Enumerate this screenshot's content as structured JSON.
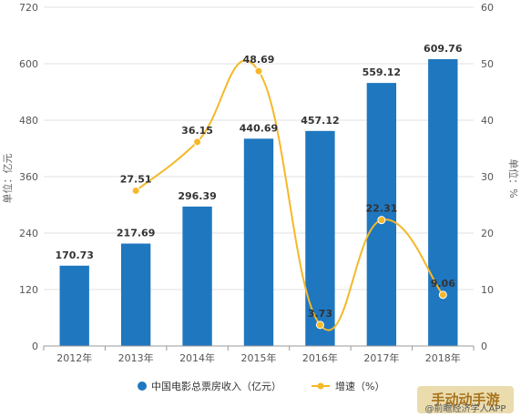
{
  "chart_data": {
    "type": "bar",
    "categories": [
      "2012年",
      "2013年",
      "2014年",
      "2015年",
      "2016年",
      "2017年",
      "2018年"
    ],
    "series": [
      {
        "name": "中国电影总票房收入（亿元）",
        "type": "bar",
        "axis": "left",
        "values": [
          170.73,
          217.69,
          296.39,
          440.69,
          457.12,
          559.12,
          609.76
        ],
        "labels": [
          "170.73",
          "217.69",
          "296.39",
          "440.69",
          "457.12",
          "559.12",
          "609.76"
        ],
        "color": "#1f77c0"
      },
      {
        "name": "增速（%）",
        "type": "line",
        "axis": "right",
        "values": [
          null,
          27.51,
          36.15,
          48.69,
          3.73,
          22.31,
          9.06
        ],
        "labels": [
          "",
          "27.51",
          "36.15",
          "48.69",
          "3.73",
          "22.31",
          "9.06"
        ],
        "color": "#f5b829"
      }
    ],
    "ylabel": "单位：亿元",
    "y2label": "单位：%",
    "ylim": [
      0,
      720
    ],
    "y2lim": [
      0,
      60
    ],
    "yticks": [
      "0",
      "120",
      "240",
      "360",
      "480",
      "600",
      "720"
    ],
    "y2ticks": [
      "0",
      "10",
      "20",
      "30",
      "40",
      "50",
      "60"
    ],
    "grid": true,
    "legend": "bottom"
  },
  "watermark": {
    "source": "@前瞻经济学人APP",
    "badge": "手动动手游"
  }
}
